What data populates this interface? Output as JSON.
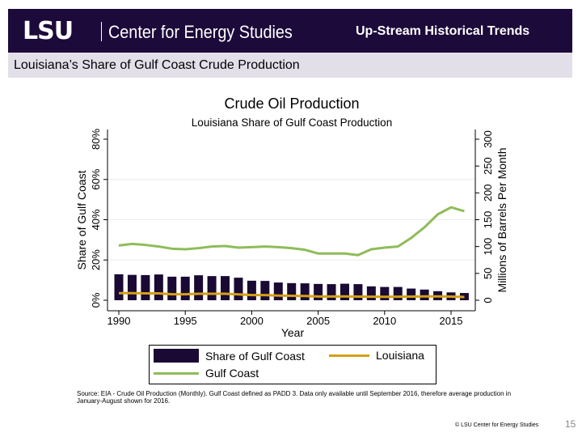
{
  "header": {
    "logo": "LSU",
    "org": "Center for Energy Studies",
    "title": "Up-Stream Historical Trends"
  },
  "subtitle": "Louisiana’s Share of Gulf Coast Crude Production",
  "chart_data": {
    "type": "bar+line",
    "title": "Crude Oil Production",
    "subtitle": "Louisiana Share of Gulf Coast Production",
    "xlabel": "Year",
    "ylabel_left": "Share of Gulf Coast",
    "ylabel_right": "Millions of Barrels Per Month",
    "ylim_left": [
      0,
      80
    ],
    "ylim_right": [
      0,
      300
    ],
    "yticks_left": [
      "0%",
      "20%",
      "40%",
      "60%",
      "80%"
    ],
    "yticks_right": [
      "0",
      "50",
      "100",
      "150",
      "200",
      "250",
      "300"
    ],
    "xticks": [
      "1990",
      "1995",
      "2000",
      "2005",
      "2010",
      "2015"
    ],
    "grid": true,
    "x": [
      1990,
      1991,
      1992,
      1993,
      1994,
      1995,
      1996,
      1997,
      1998,
      1999,
      2000,
      2001,
      2002,
      2003,
      2004,
      2005,
      2006,
      2007,
      2008,
      2009,
      2010,
      2011,
      2012,
      2013,
      2014,
      2015,
      2016
    ],
    "series": [
      {
        "name": "Share of Gulf Coast",
        "kind": "bar",
        "axis": "left",
        "color": "#1a0933",
        "values": [
          12.9,
          12.6,
          12.5,
          12.8,
          11.7,
          11.7,
          12.4,
          12.0,
          12.0,
          11.2,
          9.7,
          9.6,
          8.8,
          8.5,
          8.4,
          8.1,
          8.0,
          8.2,
          8.0,
          6.9,
          6.6,
          6.6,
          5.8,
          5.3,
          4.5,
          3.9,
          3.6
        ]
      },
      {
        "name": "Louisiana",
        "kind": "line",
        "axis": "right",
        "color": "#d4a017",
        "values": [
          13.2,
          13.2,
          12.9,
          12.8,
          11.2,
          11.1,
          12.0,
          12.0,
          12.1,
          11.0,
          9.6,
          9.6,
          8.7,
          8.2,
          7.9,
          7.0,
          7.0,
          7.1,
          6.7,
          6.6,
          6.5,
          6.6,
          6.7,
          7.2,
          7.2,
          6.7,
          6.0
        ]
      },
      {
        "name": "Gulf Coast",
        "kind": "line",
        "axis": "right",
        "color": "#8fbc5a",
        "values": [
          102,
          105,
          103,
          100,
          96,
          95,
          97,
          100,
          101,
          98,
          99,
          100,
          99,
          97,
          94,
          87,
          87,
          87,
          84,
          95,
          98,
          100,
          116,
          136,
          160,
          173,
          166
        ]
      }
    ],
    "legend": "bottom",
    "source": "Source: EIA - Crude Oil Production (Monthly). Gulf Coast defined as PADD 3. Data only available until September 2016, therefore average production in January-August shown for 2016."
  },
  "footer": {
    "copyright": "© LSU Center for Energy Studies",
    "page": "15"
  }
}
